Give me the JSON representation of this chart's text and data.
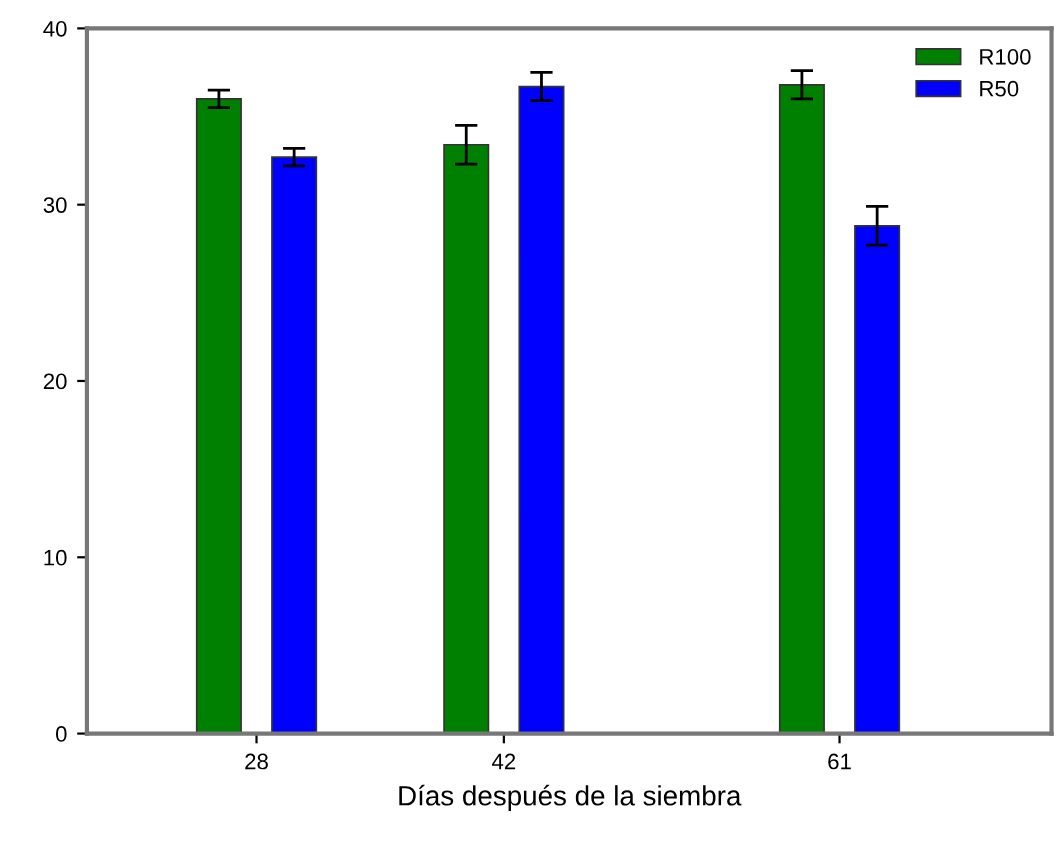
{
  "chart_data": {
    "type": "bar",
    "xlabel": "Días después de la siembra",
    "x": [
      28,
      42,
      61
    ],
    "series": [
      {
        "name": "R100",
        "color": "#008000",
        "values": [
          36.0,
          33.4,
          36.8
        ],
        "errors": [
          0.5,
          1.1,
          0.8
        ]
      },
      {
        "name": "R50",
        "color": "#0000ff",
        "values": [
          32.7,
          36.7,
          28.8
        ],
        "errors": [
          0.5,
          0.8,
          1.1
        ]
      }
    ],
    "xlim": [
      18.4,
      73
    ],
    "xticks": [
      28,
      42,
      61
    ],
    "ylim": [
      0,
      40
    ],
    "yticks": [
      0,
      10,
      20,
      30,
      40
    ],
    "grid": false,
    "legend": "top right"
  }
}
